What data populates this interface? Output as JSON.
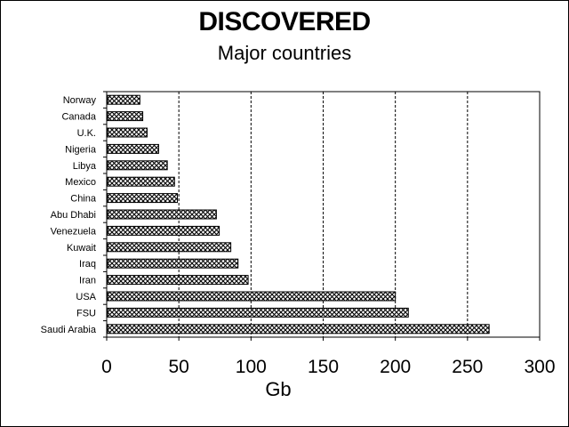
{
  "chart_data": {
    "type": "bar",
    "orientation": "horizontal",
    "title": "DISCOVERED",
    "subtitle": "Major countries",
    "xlabel": "Gb",
    "ylabel": "",
    "xlim": [
      0,
      300
    ],
    "xticks": [
      "0",
      "50",
      "100",
      "150",
      "200",
      "250",
      "300"
    ],
    "grid": "vertical dashed",
    "legend": "none",
    "bar_pattern": "crosshatch",
    "bar_color": "#000000",
    "categories": [
      "Norway",
      "Canada",
      "U.K.",
      "Nigeria",
      "Libya",
      "Mexico",
      "China",
      "Abu Dhabi",
      "Venezuela",
      "Kuwait",
      "Iraq",
      "Iran",
      "USA",
      "FSU",
      "Saudi Arabia"
    ],
    "values": [
      23,
      25,
      28,
      36,
      42,
      47,
      49,
      76,
      78,
      86,
      91,
      98,
      200,
      209,
      265
    ]
  }
}
